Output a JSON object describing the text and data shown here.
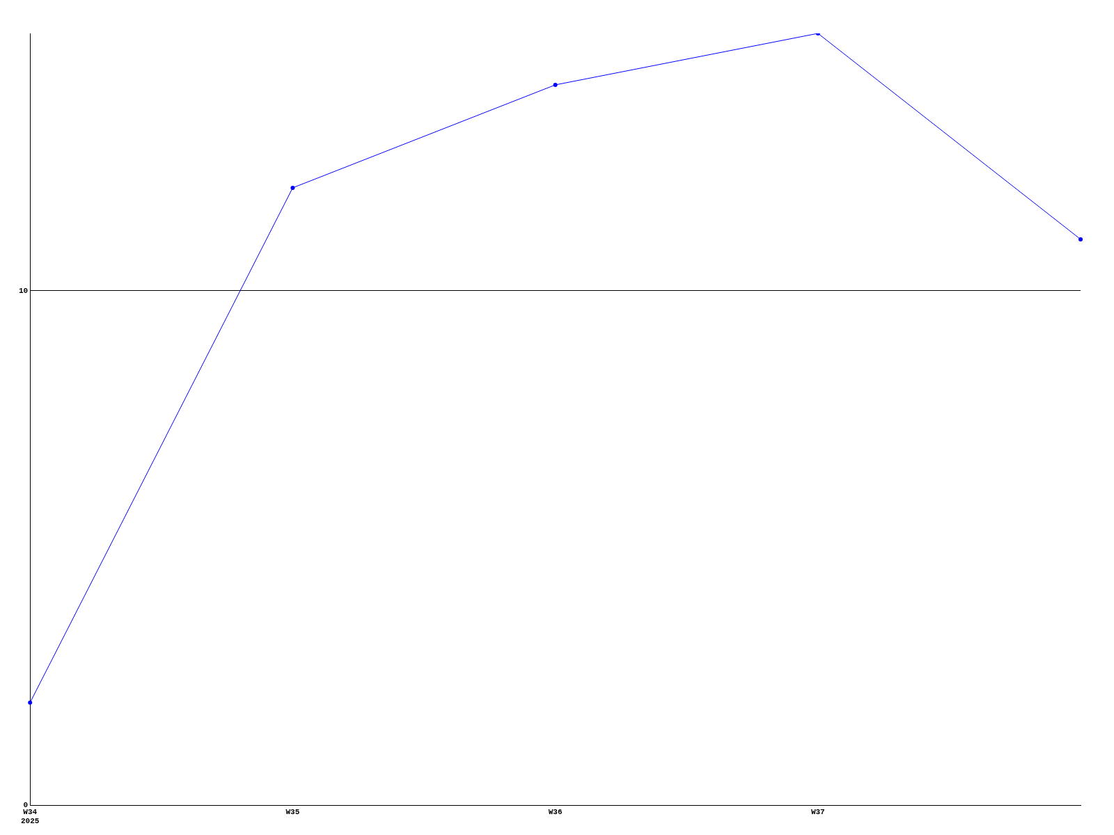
{
  "chart_data": {
    "type": "line",
    "categories": [
      "W34\n2025",
      "W35",
      "W36",
      "W37",
      null
    ],
    "series": [
      {
        "color": "#0000ff",
        "values": [
          2,
          12,
          14,
          15,
          11
        ]
      }
    ],
    "ylim": [
      0,
      15
    ],
    "yticks": [
      0,
      10
    ],
    "grid": "y",
    "marker": "circle",
    "line_style": "solid"
  }
}
